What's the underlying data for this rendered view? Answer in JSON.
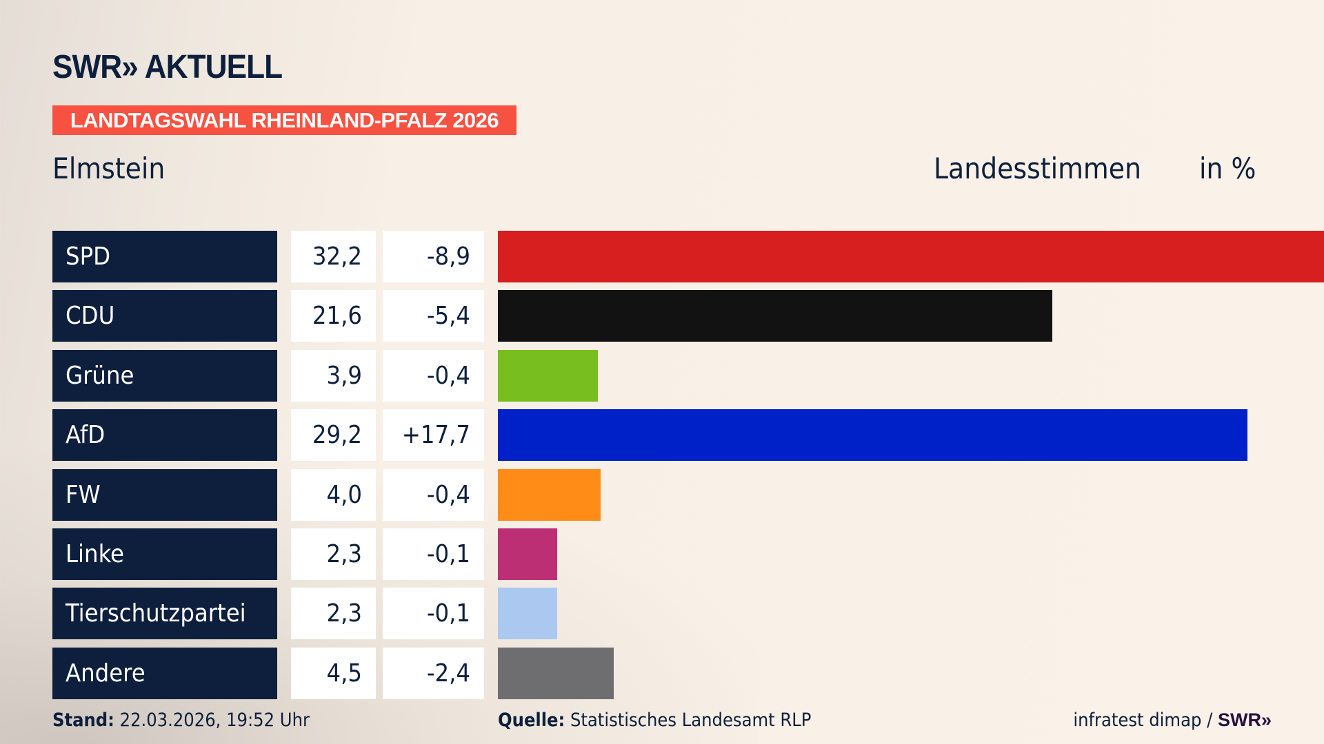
{
  "header": {
    "logo": "SWR» AKTUELL",
    "badge": "LANDTAGSWAHL RHEINLAND-PFALZ 2026",
    "location": "Elmstein",
    "metric": "Landesstimmen",
    "unit": "in %"
  },
  "chart_data": {
    "type": "bar",
    "orientation": "horizontal",
    "categories": [
      "SPD",
      "CDU",
      "Grüne",
      "AfD",
      "FW",
      "Linke",
      "Tierschutzpartei",
      "Andere"
    ],
    "values": [
      32.2,
      21.6,
      3.9,
      29.2,
      4.0,
      2.3,
      2.3,
      4.5
    ],
    "values_label": [
      "32,2",
      "21,6",
      "3,9",
      "29,2",
      "4,0",
      "2,3",
      "2,3",
      "4,5"
    ],
    "diff_label": [
      "-8,9",
      "-5,4",
      "-0,4",
      "+17,7",
      "-0,4",
      "-0,1",
      "-0,1",
      "-2,4"
    ],
    "colors": [
      "#d71f1f",
      "#121212",
      "#78be1e",
      "#0021c8",
      "#ff8c17",
      "#bc2f74",
      "#aac8f0",
      "#6e6e70"
    ],
    "xlim": [
      0,
      32.2
    ]
  },
  "footer": {
    "stand_label": "Stand:",
    "stand_value": " 22.03.2026, 19:52 Uhr",
    "source_label": "Quelle:",
    "source_value": " Statistisches Landesamt RLP",
    "credit": "infratest dimap / ",
    "credit_logo": "SWR»"
  }
}
